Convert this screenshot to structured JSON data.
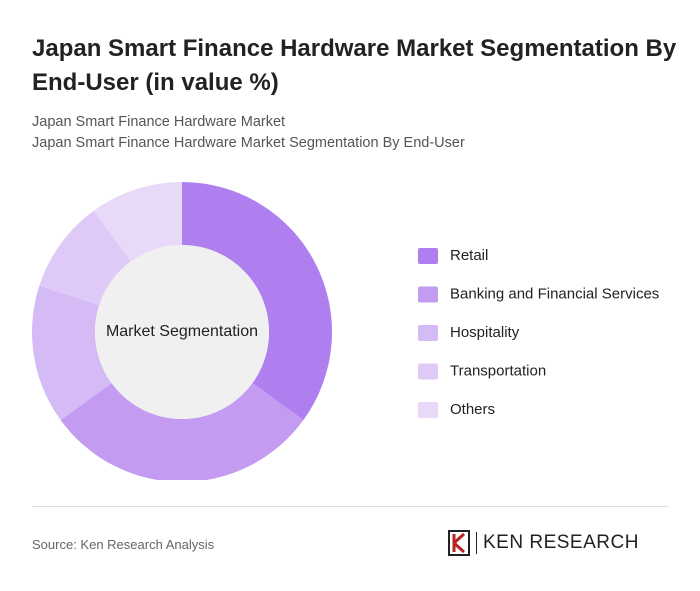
{
  "header": {
    "title": "Japan Smart Finance Hardware Market Segmentation By End-User (in value %)",
    "subtitle": "Japan Smart Finance Hardware Market",
    "subtitle2": "Japan Smart Finance Hardware Market Segmentation By End-User"
  },
  "chart_data": {
    "type": "donut",
    "center_label": "Market Segmentation",
    "categories": [
      "Retail",
      "Banking and Financial Services",
      "Hospitality",
      "Transportation",
      "Others"
    ],
    "values": [
      35,
      30,
      15,
      10,
      10
    ],
    "colors": [
      "#b07fef",
      "#c39cf2",
      "#d5bbf5",
      "#dfcaf7",
      "#e8d9f9"
    ]
  },
  "footer": {
    "source": "Source: Ken Research Analysis",
    "brand": "KEN RESEARCH"
  }
}
